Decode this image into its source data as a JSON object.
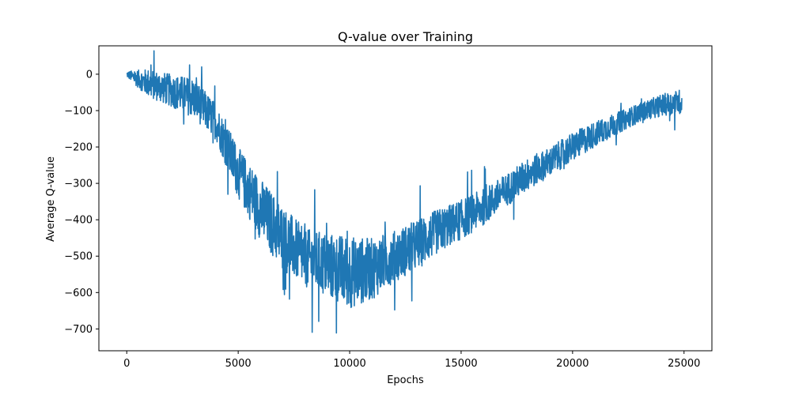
{
  "chart_data": {
    "type": "line",
    "title": "Q-value over Training",
    "xlabel": "Epochs",
    "ylabel": "Average Q-value",
    "xlim": [
      -1250,
      26250
    ],
    "ylim": [
      -760,
      78
    ],
    "x_ticks": [
      0,
      5000,
      10000,
      15000,
      20000,
      25000
    ],
    "x_tick_labels": [
      "0",
      "5000",
      "10000",
      "15000",
      "20000",
      "25000"
    ],
    "y_ticks": [
      0,
      -100,
      -200,
      -300,
      -400,
      -500,
      -600,
      -700
    ],
    "y_tick_labels": [
      "0",
      "−100",
      "−200",
      "−300",
      "−400",
      "−500",
      "−600",
      "−700"
    ],
    "grid": false,
    "legend": false,
    "color": "#1f77b4",
    "series": [
      {
        "x": [
          0,
          1000,
          2000,
          3000,
          4000,
          5000,
          6000,
          7000,
          8000,
          9000,
          10000,
          11000,
          12000,
          13000,
          14000,
          15000,
          16000,
          17000,
          18000,
          19000,
          20000,
          21000,
          22000,
          23000,
          24000,
          24900
        ],
        "mean": [
          0,
          -25,
          -45,
          -65,
          -130,
          -270,
          -370,
          -450,
          -505,
          -525,
          -545,
          -535,
          -500,
          -470,
          -430,
          -400,
          -365,
          -320,
          -275,
          -240,
          -200,
          -165,
          -135,
          -105,
          -85,
          -75
        ],
        "spread": [
          8,
          40,
          45,
          55,
          50,
          70,
          85,
          90,
          80,
          90,
          100,
          85,
          70,
          70,
          60,
          55,
          50,
          45,
          45,
          40,
          40,
          35,
          30,
          25,
          30,
          35
        ]
      }
    ]
  }
}
